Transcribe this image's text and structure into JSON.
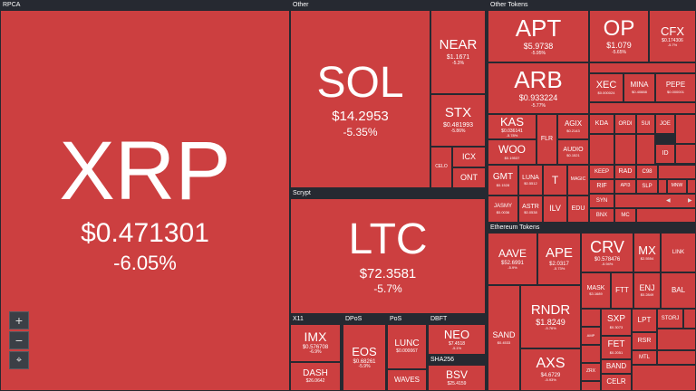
{
  "sections": {
    "rpca": "RPCA",
    "other": "Other",
    "scrypt": "Scrypt",
    "x11": "X11",
    "dpos": "DPoS",
    "pos": "PoS",
    "dbft": "DBFT",
    "sha256": "SHA256",
    "other_tokens": "Other Tokens",
    "ethereum_tokens": "Ethereum Tokens"
  },
  "tiles": {
    "xrp": {
      "symbol": "XRP",
      "price": "$0.471301",
      "change": "-6.05%"
    },
    "sol": {
      "symbol": "SOL",
      "price": "$14.2953",
      "change": "-5.35%"
    },
    "near": {
      "symbol": "NEAR",
      "price": "$1.1671",
      "change": "-5.3%"
    },
    "stx": {
      "symbol": "STX",
      "price": "$0.481993",
      "change": "-5.86%"
    },
    "icx": {
      "symbol": "ICX",
      "price": "",
      "change": ""
    },
    "celo": {
      "symbol": "CELO",
      "price": "",
      "change": ""
    },
    "ont": {
      "symbol": "ONT",
      "price": "",
      "change": ""
    },
    "ltc": {
      "symbol": "LTC",
      "price": "$72.3581",
      "change": "-5.7%"
    },
    "imx": {
      "symbol": "IMX",
      "price": "$0.576708",
      "change": "-6.9%"
    },
    "dash": {
      "symbol": "DASH",
      "price": "$26.0642",
      "change": ""
    },
    "eos": {
      "symbol": "EOS",
      "price": "$0.68261",
      "change": "-5.9%"
    },
    "lunc": {
      "symbol": "LUNC",
      "price": "$0.000067",
      "change": ""
    },
    "waves": {
      "symbol": "WAVES",
      "price": "",
      "change": ""
    },
    "neo": {
      "symbol": "NEO",
      "price": "$7.4518",
      "change": "-5.1%"
    },
    "bsv": {
      "symbol": "BSV",
      "price": "$25.4159",
      "change": ""
    },
    "apt": {
      "symbol": "APT",
      "price": "$5.9738",
      "change": "-5.95%"
    },
    "op": {
      "symbol": "OP",
      "price": "$1.079",
      "change": "-5.65%"
    },
    "cfx": {
      "symbol": "CFX",
      "price": "$0.174306",
      "change": "-5.7%"
    },
    "arb": {
      "symbol": "ARB",
      "price": "$0.933224",
      "change": "-5.77%"
    },
    "xec": {
      "symbol": "XEC",
      "price": "$0.000024",
      "change": ""
    },
    "mina": {
      "symbol": "MINA",
      "price": "$0.40888",
      "change": ""
    },
    "pepe": {
      "symbol": "PEPE",
      "price": "$0.000001",
      "change": ""
    },
    "kas": {
      "symbol": "KAS",
      "price": "$0.036141",
      "change": "-5.78%"
    },
    "flr": {
      "symbol": "FLR",
      "price": "",
      "change": ""
    },
    "agix": {
      "symbol": "AGIX",
      "price": "$0.2143",
      "change": ""
    },
    "kda": {
      "symbol": "KDA",
      "price": "",
      "change": ""
    },
    "ordi": {
      "symbol": "ORDI",
      "price": "",
      "change": ""
    },
    "sui": {
      "symbol": "SUI",
      "price": "",
      "change": ""
    },
    "joe": {
      "symbol": "JOE",
      "price": "",
      "change": ""
    },
    "woo": {
      "symbol": "WOO",
      "price": "$0.19537",
      "change": ""
    },
    "audio": {
      "symbol": "AUDIO",
      "price": "$0.1521",
      "change": ""
    },
    "gmt": {
      "symbol": "GMT",
      "price": "$0.1528",
      "change": ""
    },
    "luna": {
      "symbol": "LUNA",
      "price": "$0.5512",
      "change": ""
    },
    "t": {
      "symbol": "T",
      "price": "",
      "change": ""
    },
    "magic": {
      "symbol": "MAGIC",
      "price": "",
      "change": ""
    },
    "jasmy": {
      "symbol": "JASMY",
      "price": "$0.0036",
      "change": ""
    },
    "astr": {
      "symbol": "ASTR",
      "price": "$0.0538",
      "change": ""
    },
    "ilv": {
      "symbol": "ILV",
      "price": "",
      "change": ""
    },
    "edu": {
      "symbol": "EDU",
      "price": "",
      "change": ""
    },
    "keep": {
      "symbol": "KEEP",
      "price": "",
      "change": ""
    },
    "rad": {
      "symbol": "RAD",
      "price": "",
      "change": ""
    },
    "c98": {
      "symbol": "C98",
      "price": "",
      "change": ""
    },
    "rif": {
      "symbol": "RIF",
      "price": "",
      "change": ""
    },
    "api3": {
      "symbol": "API3",
      "price": "",
      "change": ""
    },
    "slp": {
      "symbol": "SLP",
      "price": "",
      "change": ""
    },
    "syn": {
      "symbol": "SYN",
      "price": "",
      "change": ""
    },
    "mnw": {
      "symbol": "MNW",
      "price": "",
      "change": ""
    },
    "bnx": {
      "symbol": "BNX",
      "price": "",
      "change": ""
    },
    "mc": {
      "symbol": "MC",
      "price": "",
      "change": ""
    },
    "id": {
      "symbol": "ID",
      "price": "",
      "change": ""
    },
    "aave": {
      "symbol": "AAVE",
      "price": "$52.6991",
      "change": "-5.9%"
    },
    "ape": {
      "symbol": "APE",
      "price": "$2.0317",
      "change": "-5.73%"
    },
    "crv": {
      "symbol": "CRV",
      "price": "$0.578476",
      "change": "-5.94%"
    },
    "mx": {
      "symbol": "MX",
      "price": "$2.5554",
      "change": ""
    },
    "link": {
      "symbol": "LINK",
      "price": "",
      "change": ""
    },
    "mask": {
      "symbol": "MASK",
      "price": "$3.1689",
      "change": ""
    },
    "ftt": {
      "symbol": "FTT",
      "price": "",
      "change": ""
    },
    "enj": {
      "symbol": "ENJ",
      "price": "$0.2849",
      "change": ""
    },
    "bal": {
      "symbol": "BAL",
      "price": "",
      "change": ""
    },
    "sand": {
      "symbol": "SAND",
      "price": "$0.4533",
      "change": ""
    },
    "rndr": {
      "symbol": "RNDR",
      "price": "$1.8249",
      "change": "-5.76%"
    },
    "sxp": {
      "symbol": "SXP",
      "price": "$0.3073",
      "change": ""
    },
    "lpt": {
      "symbol": "LPT",
      "price": "",
      "change": ""
    },
    "storj": {
      "symbol": "STORJ",
      "price": "",
      "change": ""
    },
    "amp": {
      "symbol": "AMP",
      "price": "",
      "change": ""
    },
    "fet": {
      "symbol": "FET",
      "price": "$0.2051",
      "change": ""
    },
    "rsr": {
      "symbol": "RSR",
      "price": "",
      "change": ""
    },
    "axs": {
      "symbol": "AXS",
      "price": "$4.6729",
      "change": "-5.93%"
    },
    "band": {
      "symbol": "BAND",
      "price": "",
      "change": ""
    },
    "mtl": {
      "symbol": "MTL",
      "price": "",
      "change": ""
    },
    "celr": {
      "symbol": "CELR",
      "price": "",
      "change": ""
    },
    "zrx": {
      "symbol": "ZRX",
      "price": "",
      "change": ""
    }
  },
  "controls": {
    "zoom_in": "+",
    "zoom_out": "−",
    "reset": "⌖",
    "scroll_left": "◀",
    "scroll_right": "▶"
  }
}
